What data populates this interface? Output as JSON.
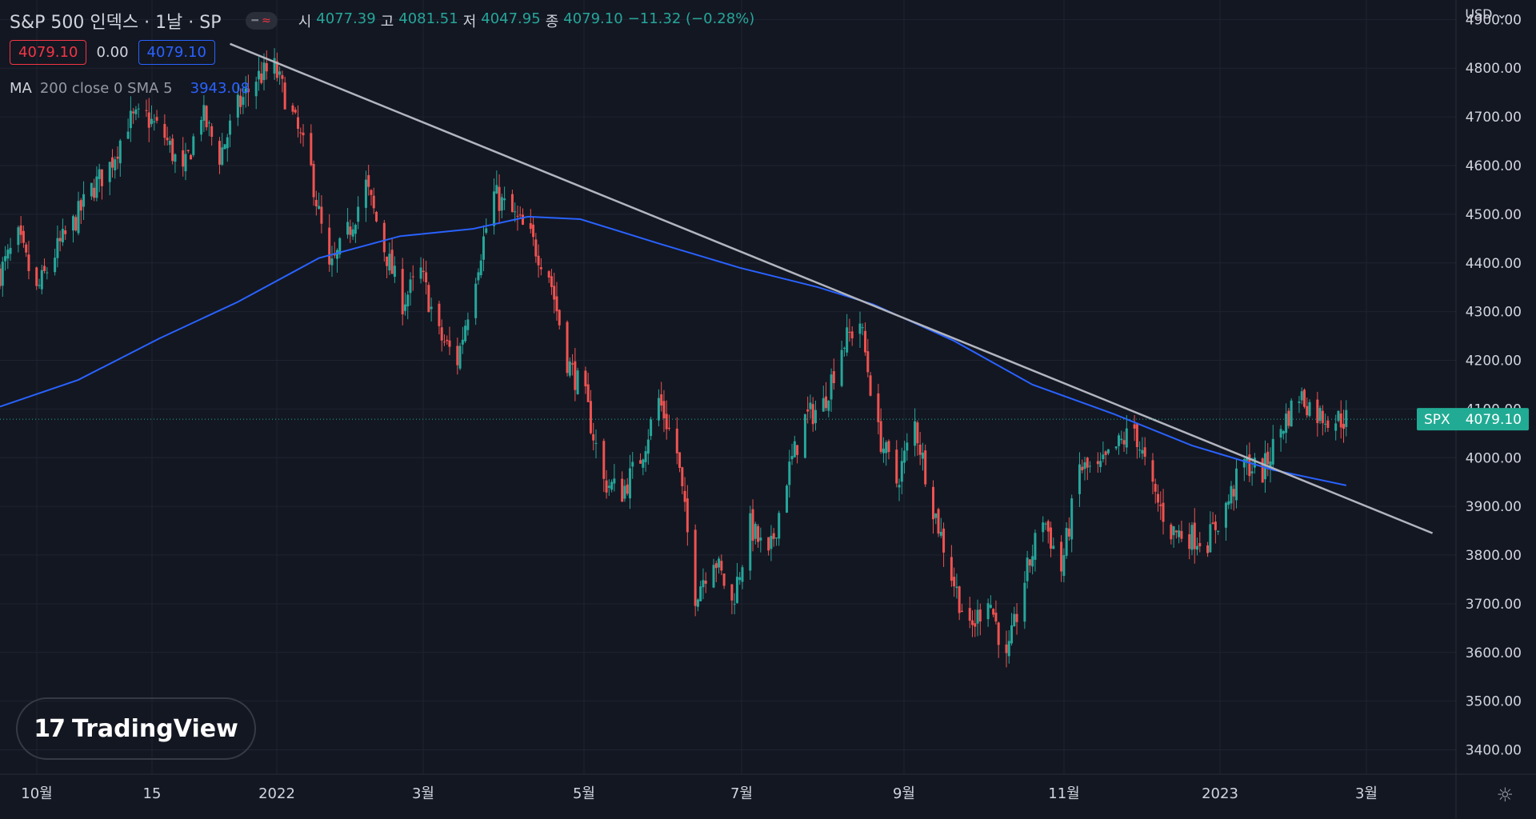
{
  "header": {
    "title": "S&P 500 인덱스 · 1날 · SP",
    "ohlc": [
      {
        "k": "시",
        "v": "4077.39"
      },
      {
        "k": "고",
        "v": "4081.51"
      },
      {
        "k": "저",
        "v": "4047.95"
      },
      {
        "k": "종",
        "v": "4079.10"
      }
    ],
    "change": "−11.32 (−0.28%)",
    "sell_price": "4079.10",
    "spread": "0.00",
    "buy_price": "4079.10"
  },
  "indicator": {
    "name": "MA",
    "params": "200 close 0 SMA 5",
    "value": "3943.08"
  },
  "price_axis": {
    "currency": "USD",
    "ticks": [
      "4900.00",
      "4800.00",
      "4700.00",
      "4600.00",
      "4500.00",
      "4400.00",
      "4300.00",
      "4200.00",
      "4100.00",
      "4000.00",
      "3900.00",
      "3800.00",
      "3700.00",
      "3600.00",
      "3500.00",
      "3400.00"
    ]
  },
  "time_axis": {
    "ticks": [
      "10월",
      "15",
      "2022",
      "3월",
      "5월",
      "7월",
      "9월",
      "11월",
      "2023",
      "3월"
    ]
  },
  "last_price": {
    "symbol": "SPX",
    "value": "4079.10"
  },
  "branding": {
    "name": "TradingView"
  },
  "colors": {
    "up": "#26a69a",
    "down": "#ef5350",
    "ma": "#2962ff",
    "trend": "#b2b5be",
    "label_bg": "#22ab94"
  },
  "chart_data": {
    "type": "candlestick",
    "symbol": "SPX",
    "ylim": [
      3350,
      4940
    ],
    "xlim": [
      "2021-09-20",
      "2023-03-31"
    ],
    "last_close": 4079.1,
    "close_series": [
      {
        "d": "2021-09-20",
        "c": 4380
      },
      {
        "d": "2021-09-27",
        "c": 4450
      },
      {
        "d": "2021-10-04",
        "c": 4340
      },
      {
        "d": "2021-10-11",
        "c": 4420
      },
      {
        "d": "2021-10-18",
        "c": 4480
      },
      {
        "d": "2021-10-25",
        "c": 4550
      },
      {
        "d": "2021-11-01",
        "c": 4600
      },
      {
        "d": "2021-11-08",
        "c": 4690
      },
      {
        "d": "2021-11-15",
        "c": 4700
      },
      {
        "d": "2021-11-22",
        "c": 4660
      },
      {
        "d": "2021-11-29",
        "c": 4580
      },
      {
        "d": "2021-12-06",
        "c": 4710
      },
      {
        "d": "2021-12-13",
        "c": 4620
      },
      {
        "d": "2021-12-20",
        "c": 4720
      },
      {
        "d": "2021-12-27",
        "c": 4780
      },
      {
        "d": "2022-01-03",
        "c": 4800
      },
      {
        "d": "2022-01-10",
        "c": 4700
      },
      {
        "d": "2022-01-17",
        "c": 4590
      },
      {
        "d": "2022-01-24",
        "c": 4380
      },
      {
        "d": "2022-01-31",
        "c": 4460
      },
      {
        "d": "2022-02-07",
        "c": 4560
      },
      {
        "d": "2022-02-14",
        "c": 4430
      },
      {
        "d": "2022-02-21",
        "c": 4320
      },
      {
        "d": "2022-02-28",
        "c": 4380
      },
      {
        "d": "2022-03-07",
        "c": 4250
      },
      {
        "d": "2022-03-14",
        "c": 4200
      },
      {
        "d": "2022-03-21",
        "c": 4380
      },
      {
        "d": "2022-03-28",
        "c": 4540
      },
      {
        "d": "2022-04-04",
        "c": 4500
      },
      {
        "d": "2022-04-11",
        "c": 4450
      },
      {
        "d": "2022-04-18",
        "c": 4380
      },
      {
        "d": "2022-04-25",
        "c": 4200
      },
      {
        "d": "2022-05-02",
        "c": 4120
      },
      {
        "d": "2022-05-09",
        "c": 3950
      },
      {
        "d": "2022-05-16",
        "c": 3930
      },
      {
        "d": "2022-05-23",
        "c": 4000
      },
      {
        "d": "2022-05-30",
        "c": 4120
      },
      {
        "d": "2022-06-06",
        "c": 4010
      },
      {
        "d": "2022-06-13",
        "c": 3720
      },
      {
        "d": "2022-06-20",
        "c": 3800
      },
      {
        "d": "2022-06-27",
        "c": 3700
      },
      {
        "d": "2022-07-04",
        "c": 3860
      },
      {
        "d": "2022-07-11",
        "c": 3790
      },
      {
        "d": "2022-07-18",
        "c": 3960
      },
      {
        "d": "2022-07-25",
        "c": 4080
      },
      {
        "d": "2022-08-01",
        "c": 4110
      },
      {
        "d": "2022-08-08",
        "c": 4230
      },
      {
        "d": "2022-08-15",
        "c": 4280
      },
      {
        "d": "2022-08-22",
        "c": 4050
      },
      {
        "d": "2022-08-29",
        "c": 3950
      },
      {
        "d": "2022-09-05",
        "c": 4070
      },
      {
        "d": "2022-09-12",
        "c": 3900
      },
      {
        "d": "2022-09-19",
        "c": 3760
      },
      {
        "d": "2022-09-26",
        "c": 3640
      },
      {
        "d": "2022-10-03",
        "c": 3720
      },
      {
        "d": "2022-10-10",
        "c": 3580
      },
      {
        "d": "2022-10-17",
        "c": 3750
      },
      {
        "d": "2022-10-24",
        "c": 3880
      },
      {
        "d": "2022-10-31",
        "c": 3770
      },
      {
        "d": "2022-11-07",
        "c": 3980
      },
      {
        "d": "2022-11-14",
        "c": 3970
      },
      {
        "d": "2022-11-21",
        "c": 4020
      },
      {
        "d": "2022-11-28",
        "c": 4060
      },
      {
        "d": "2022-12-05",
        "c": 3930
      },
      {
        "d": "2022-12-12",
        "c": 3850
      },
      {
        "d": "2022-12-19",
        "c": 3840
      },
      {
        "d": "2022-12-26",
        "c": 3830
      },
      {
        "d": "2023-01-02",
        "c": 3900
      },
      {
        "d": "2023-01-09",
        "c": 3990
      },
      {
        "d": "2023-01-16",
        "c": 3970
      },
      {
        "d": "2023-01-23",
        "c": 4060
      },
      {
        "d": "2023-01-30",
        "c": 4130
      },
      {
        "d": "2023-02-06",
        "c": 4090
      },
      {
        "d": "2023-02-13",
        "c": 4080
      },
      {
        "d": "2023-02-17",
        "c": 4079.1
      }
    ],
    "ma_series": [
      {
        "d": "2021-09-20",
        "v": 4105
      },
      {
        "d": "2021-10-20",
        "v": 4160
      },
      {
        "d": "2021-11-20",
        "v": 4245
      },
      {
        "d": "2021-12-20",
        "v": 4320
      },
      {
        "d": "2022-01-20",
        "v": 4410
      },
      {
        "d": "2022-02-20",
        "v": 4455
      },
      {
        "d": "2022-03-20",
        "v": 4470
      },
      {
        "d": "2022-04-10",
        "v": 4495
      },
      {
        "d": "2022-04-30",
        "v": 4490
      },
      {
        "d": "2022-05-30",
        "v": 4440
      },
      {
        "d": "2022-06-30",
        "v": 4390
      },
      {
        "d": "2022-07-30",
        "v": 4350
      },
      {
        "d": "2022-08-20",
        "v": 4315
      },
      {
        "d": "2022-09-20",
        "v": 4240
      },
      {
        "d": "2022-10-20",
        "v": 4150
      },
      {
        "d": "2022-11-20",
        "v": 4090
      },
      {
        "d": "2022-12-20",
        "v": 4025
      },
      {
        "d": "2023-01-20",
        "v": 3975
      },
      {
        "d": "2023-02-17",
        "v": 3943.08
      }
    ],
    "trendline": {
      "start": {
        "d": "2021-12-17",
        "v": 4850
      },
      "end": {
        "d": "2023-03-22",
        "v": 3845
      }
    }
  }
}
